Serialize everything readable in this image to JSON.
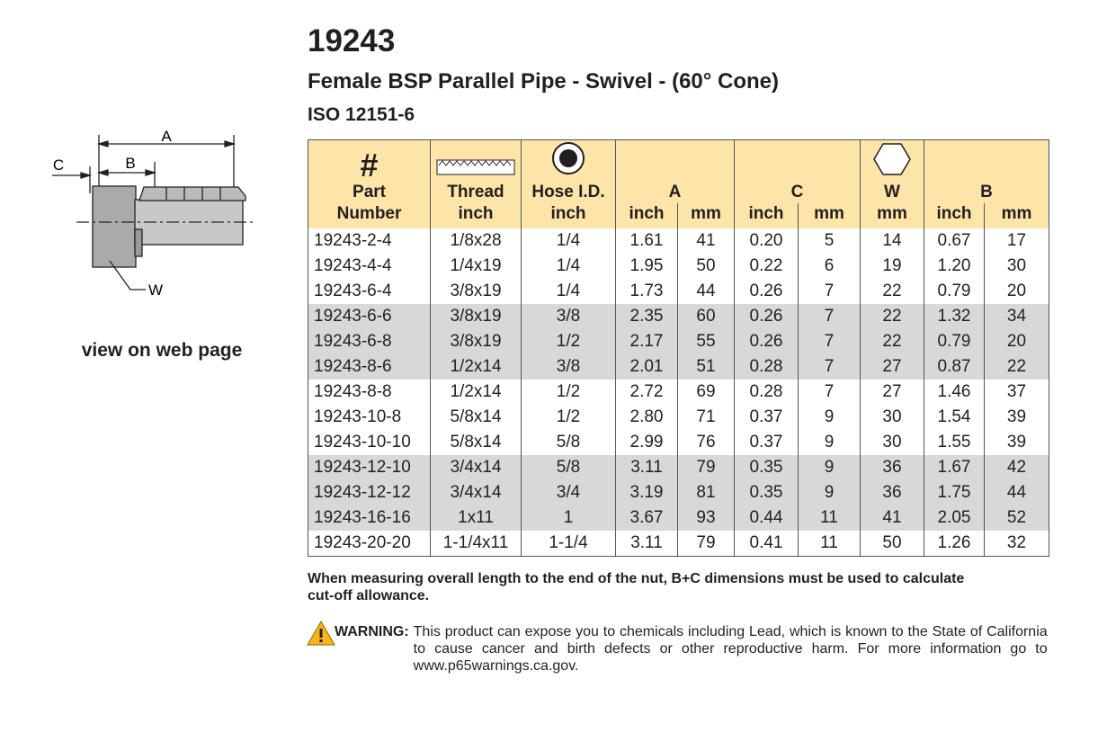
{
  "header": {
    "part_number": "19243",
    "title": "Female BSP Parallel Pipe - Swivel - (60° Cone)",
    "standard": "ISO 12151-6"
  },
  "drawing": {
    "labels": {
      "a": "A",
      "b": "B",
      "c": "C",
      "w": "W"
    },
    "link": "view on web page"
  },
  "table": {
    "hash": "#",
    "groups": [
      {
        "label": "Part",
        "units": [
          "Number"
        ]
      },
      {
        "label": "Thread",
        "units": [
          "inch"
        ]
      },
      {
        "label": "Hose I.D.",
        "units": [
          "inch"
        ]
      },
      {
        "label": "A",
        "units": [
          "inch",
          "mm"
        ]
      },
      {
        "label": "C",
        "units": [
          "inch",
          "mm"
        ]
      },
      {
        "label": "W",
        "units": [
          "mm"
        ]
      },
      {
        "label": "B",
        "units": [
          "inch",
          "mm"
        ]
      }
    ],
    "rows": [
      [
        "19243-2-4",
        "1/8x28",
        "1/4",
        "1.61",
        "41",
        "0.20",
        "5",
        "14",
        "0.67",
        "17"
      ],
      [
        "19243-4-4",
        "1/4x19",
        "1/4",
        "1.95",
        "50",
        "0.22",
        "6",
        "19",
        "1.20",
        "30"
      ],
      [
        "19243-6-4",
        "3/8x19",
        "1/4",
        "1.73",
        "44",
        "0.26",
        "7",
        "22",
        "0.79",
        "20"
      ],
      [
        "19243-6-6",
        "3/8x19",
        "3/8",
        "2.35",
        "60",
        "0.26",
        "7",
        "22",
        "1.32",
        "34"
      ],
      [
        "19243-6-8",
        "3/8x19",
        "1/2",
        "2.17",
        "55",
        "0.26",
        "7",
        "22",
        "0.79",
        "20"
      ],
      [
        "19243-8-6",
        "1/2x14",
        "3/8",
        "2.01",
        "51",
        "0.28",
        "7",
        "27",
        "0.87",
        "22"
      ],
      [
        "19243-8-8",
        "1/2x14",
        "1/2",
        "2.72",
        "69",
        "0.28",
        "7",
        "27",
        "1.46",
        "37"
      ],
      [
        "19243-10-8",
        "5/8x14",
        "1/2",
        "2.80",
        "71",
        "0.37",
        "9",
        "30",
        "1.54",
        "39"
      ],
      [
        "19243-10-10",
        "5/8x14",
        "5/8",
        "2.99",
        "76",
        "0.37",
        "9",
        "30",
        "1.55",
        "39"
      ],
      [
        "19243-12-10",
        "3/4x14",
        "5/8",
        "3.11",
        "79",
        "0.35",
        "9",
        "36",
        "1.67",
        "42"
      ],
      [
        "19243-12-12",
        "3/4x14",
        "3/4",
        "3.19",
        "81",
        "0.35",
        "9",
        "36",
        "1.75",
        "44"
      ],
      [
        "19243-16-16",
        "1x11",
        "1",
        "3.67",
        "93",
        "0.44",
        "11",
        "41",
        "2.05",
        "52"
      ],
      [
        "19243-20-20",
        "1-1/4x11",
        "1-1/4",
        "3.11",
        "79",
        "0.41",
        "11",
        "50",
        "1.26",
        "32"
      ]
    ]
  },
  "note": "When measuring overall length to the end of the nut, B+C dimensions must be used to calculate cut-off allowance.",
  "warning": {
    "label": "WARNING:",
    "text": "This product can expose you to chemicals including Lead, which is known to the State of California to cause cancer and birth defects or other reproductive harm.  For more information go to www.p65warnings.ca.gov."
  }
}
